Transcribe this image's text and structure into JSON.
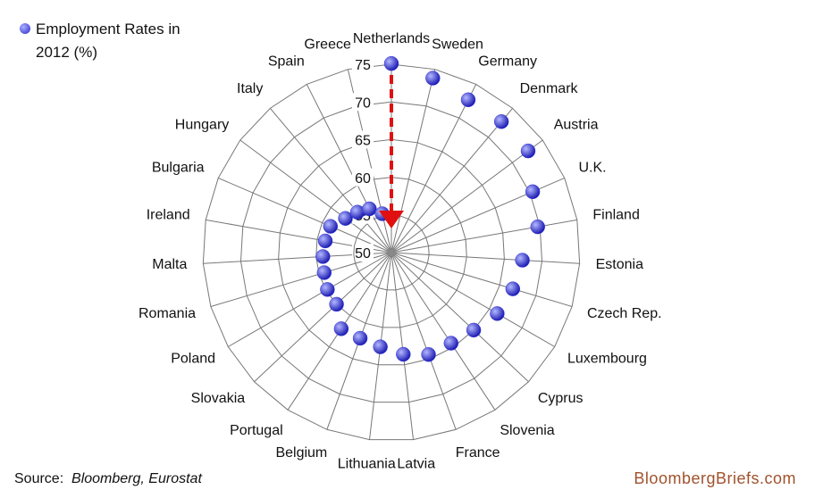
{
  "chart_data": {
    "type": "radar",
    "legend_title": "Employment Rates in 2012 (%)",
    "categories": [
      "Netherlands",
      "Sweden",
      "Germany",
      "Denmark",
      "Austria",
      "U.K.",
      "Finland",
      "Estonia",
      "Czech Rep.",
      "Luxembourg",
      "Cyprus",
      "Slovenia",
      "France",
      "Latvia",
      "Lithuania",
      "Belgium",
      "Portugal",
      "Slovakia",
      "Poland",
      "Romania",
      "Malta",
      "Ireland",
      "Bulgaria",
      "Hungary",
      "Italy",
      "Spain",
      "Greece"
    ],
    "series": [
      {
        "name": "Employment Rates in 2012 (%)",
        "color": "#3b3bdc",
        "values": [
          75.1,
          73.8,
          72.7,
          72.7,
          72.6,
          70.4,
          69.7,
          67.4,
          66.8,
          66.2,
          65.0,
          64.4,
          64.4,
          63.6,
          62.6,
          62.1,
          62.1,
          60.0,
          59.8,
          59.3,
          59.1,
          58.9,
          58.8,
          57.6,
          57.0,
          56.5,
          55.3
        ]
      }
    ],
    "rlim": [
      50,
      75
    ],
    "rticks": [
      50,
      55,
      60,
      65,
      70,
      75
    ],
    "source_label": "Source:",
    "source": "Bloomberg, Eurostat",
    "brand": "BloombergBriefs.com"
  }
}
